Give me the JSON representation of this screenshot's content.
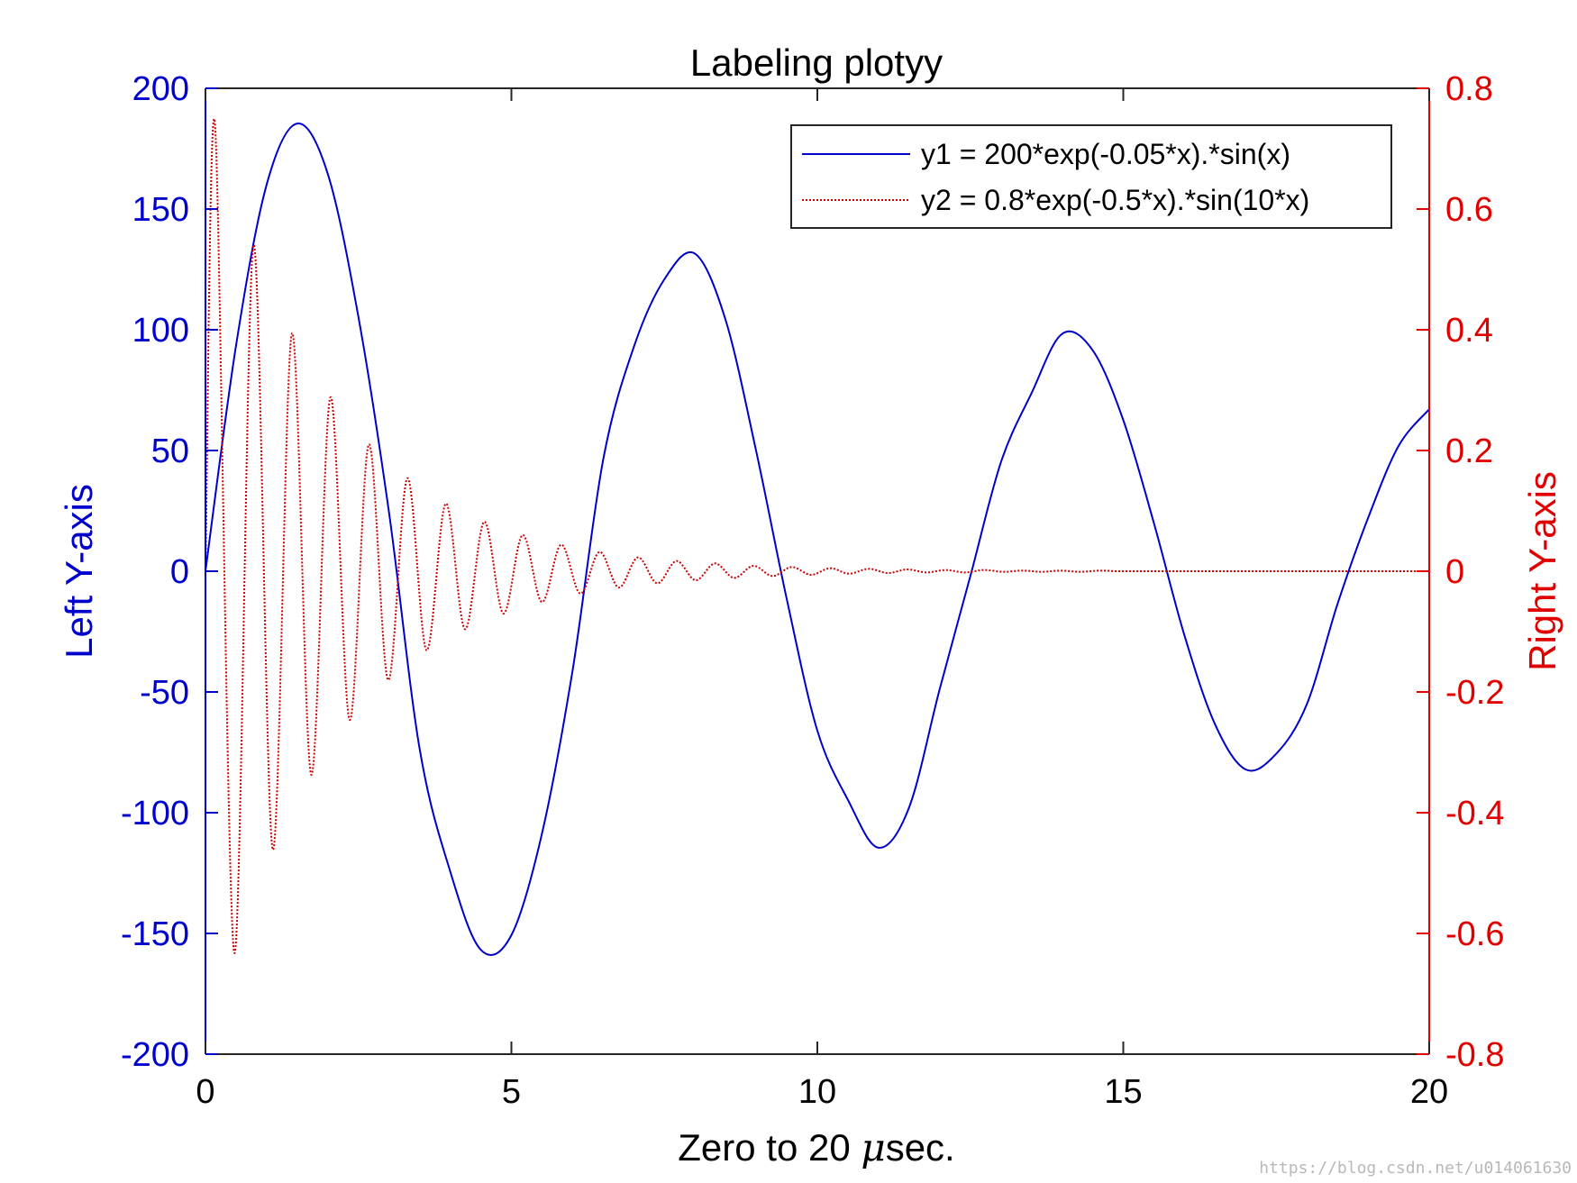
{
  "chart_data": {
    "type": "line",
    "title": "Labeling plotyy",
    "xlabel_prefix": "Zero to 20 ",
    "xlabel_mu": "μ",
    "xlabel_suffix": "sec.",
    "ylabel_left": "Left Y-axis",
    "ylabel_right": "Right Y-axis",
    "xlim": [
      0,
      20
    ],
    "ylim_left": [
      -200,
      200
    ],
    "ylim_right": [
      -0.8,
      0.8
    ],
    "x_ticks": [
      0,
      5,
      10,
      15,
      20
    ],
    "x_tick_labels": [
      "0",
      "5",
      "10",
      "15",
      "20"
    ],
    "y_left_ticks": [
      -200,
      -150,
      -100,
      -50,
      0,
      50,
      100,
      150,
      200
    ],
    "y_left_tick_labels": [
      "-200",
      "-150",
      "-100",
      "-50",
      "0",
      "50",
      "100",
      "150",
      "200"
    ],
    "y_right_ticks": [
      -0.8,
      -0.6,
      -0.4,
      -0.2,
      0,
      0.2,
      0.4,
      0.6,
      0.8
    ],
    "y_right_tick_labels": [
      "-0.8",
      "-0.6",
      "-0.4",
      "-0.2",
      "0",
      "0.2",
      "0.4",
      "0.6",
      "0.8"
    ],
    "grid": false,
    "legend_position": "top-right",
    "series": [
      {
        "name": "y1 = 200*exp(-0.05*x).*sin(x)",
        "axis": "left",
        "color": "#0000cc",
        "style": "solid",
        "x": [
          0,
          0.5,
          1,
          1.5,
          2,
          2.5,
          3,
          3.5,
          4,
          4.5,
          5,
          5.5,
          6,
          6.5,
          7,
          7.5,
          8,
          8.5,
          9,
          9.5,
          10,
          10.5,
          11,
          11.5,
          12,
          12.5,
          13,
          13.5,
          14,
          14.5,
          15,
          15.5,
          16,
          16.5,
          17,
          17.5,
          18,
          18.5,
          19,
          19.5,
          20
        ],
        "y": [
          0,
          93.5,
          160.1,
          185.4,
          164.5,
          105.3,
          24.3,
          -73.5,
          -124.3,
          -156.8,
          -150.7,
          -108.6,
          -41.1,
          46.2,
          92.8,
          120.9,
          131.5,
          104.1,
          49.8,
          -11.5,
          -66.0,
          -94.7,
          -114.5,
          -97.8,
          -48.8,
          -2.1,
          45.1,
          73.7,
          98.3,
          91.5,
          62.6,
          20.0,
          -26.6,
          -63.4,
          -82.1,
          -75.6,
          -55.1,
          -13.7,
          22.0,
          51.9,
          67.1
        ]
      },
      {
        "name": "y2 = 0.8*exp(-0.5*x).*sin(10*x)",
        "axis": "right",
        "color": "#cc0000",
        "style": "dotted",
        "x": [
          0,
          0.157,
          0.471,
          0.785,
          1.1,
          1.414,
          1.728,
          2.042,
          2.356,
          2.67,
          2.985,
          3.299,
          3.613,
          3.927,
          4.241,
          4.555,
          4.869,
          5.184,
          5.498,
          5.812,
          6.126,
          6.44,
          6.754,
          7.069,
          7.383,
          7.697,
          8.011,
          8.325,
          8.639,
          8.954,
          9.268,
          9.582,
          9.896,
          10.21,
          10.52,
          10.84,
          11.15,
          11.47,
          11.78,
          12.1,
          12.41,
          12.72,
          13.04,
          13.35,
          13.67,
          13.98,
          14.3,
          14.61,
          14.92,
          15.24,
          15.55,
          15.87,
          16.18,
          16.49,
          16.81,
          17.12,
          17.44,
          17.75,
          18.06,
          18.38,
          18.69,
          19.01,
          19.32,
          19.63,
          19.95,
          20
        ],
        "y": [
          0,
          0.739,
          -0.632,
          0.54,
          -0.461,
          0.394,
          -0.337,
          0.288,
          -0.246,
          0.21,
          -0.18,
          0.154,
          -0.131,
          0.112,
          -0.096,
          0.082,
          -0.07,
          0.06,
          -0.051,
          0.044,
          -0.037,
          0.032,
          -0.027,
          0.023,
          -0.02,
          0.017,
          -0.015,
          0.013,
          -0.011,
          0.009,
          -0.008,
          0.007,
          -0.006,
          0.005,
          -0.004,
          0.004,
          -0.003,
          0.003,
          -0.002,
          0.002,
          -0.002,
          0.002,
          -0.001,
          0.001,
          -0.001,
          0.001,
          -0.001,
          0.001,
          0,
          0,
          0,
          0,
          0,
          0,
          0,
          0,
          0,
          0,
          0,
          0,
          0,
          0,
          0,
          0,
          0,
          0
        ]
      }
    ]
  },
  "watermark_text": "https://blog.csdn.net/u014061630"
}
